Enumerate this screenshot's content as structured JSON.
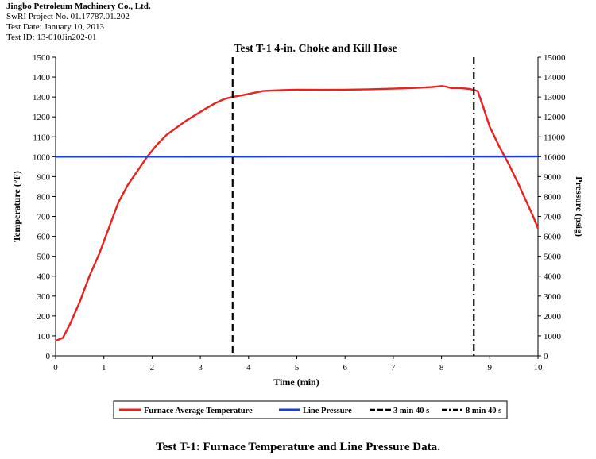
{
  "header": {
    "company": "Jingbo Petroleum Machinery Co., Ltd.",
    "project": "SwRI Project No. 01.17787.01.202",
    "test_date": "Test Date: January 10, 2013",
    "test_id": "Test ID: 13-010Jin202-01"
  },
  "caption": "Test T-1: Furnace Temperature and Line Pressure Data.",
  "chart_data": {
    "type": "line",
    "title": "Test T-1 4-in. Choke and Kill Hose",
    "xlabel": "Time (min)",
    "ylabel_left": "Temperature (°F)",
    "ylabel_right": "Pressure (psig)",
    "xlim": [
      0,
      10
    ],
    "ylim_left": [
      0,
      1500
    ],
    "ylim_right": [
      0,
      15000
    ],
    "x_ticks": [
      "0",
      "1",
      "2",
      "3",
      "4",
      "5",
      "6",
      "7",
      "8",
      "9",
      "10"
    ],
    "y_ticks_left": [
      "0",
      "100",
      "200",
      "300",
      "400",
      "500",
      "600",
      "700",
      "800",
      "900",
      "1000",
      "1100",
      "1200",
      "1300",
      "1400",
      "1500"
    ],
    "y_ticks_right": [
      "0",
      "1000",
      "2000",
      "3000",
      "4000",
      "5000",
      "6000",
      "7000",
      "8000",
      "9000",
      "10000",
      "11000",
      "12000",
      "13000",
      "14000",
      "15000"
    ],
    "grid": false,
    "legend_position": "bottom",
    "series": [
      {
        "name": "Furnace Average Temperature",
        "axis": "left",
        "color": "#e8221f",
        "x": [
          0,
          0.15,
          0.3,
          0.5,
          0.7,
          0.9,
          1.1,
          1.3,
          1.5,
          1.7,
          1.9,
          2.1,
          2.3,
          2.5,
          2.7,
          2.9,
          3.1,
          3.3,
          3.5,
          3.67,
          3.9,
          4.1,
          4.3,
          4.5,
          4.7,
          5.0,
          5.5,
          6.0,
          6.5,
          7.0,
          7.5,
          7.8,
          8.0,
          8.1,
          8.2,
          8.4,
          8.6,
          8.75,
          8.85,
          9.0,
          9.2,
          9.4,
          9.6,
          9.75,
          9.9,
          10.0
        ],
        "y": [
          75,
          90,
          160,
          270,
          400,
          510,
          640,
          770,
          860,
          930,
          1000,
          1060,
          1110,
          1145,
          1180,
          1210,
          1240,
          1268,
          1290,
          1300,
          1310,
          1320,
          1330,
          1333,
          1335,
          1337,
          1336,
          1337,
          1339,
          1342,
          1346,
          1350,
          1355,
          1352,
          1345,
          1345,
          1340,
          1330,
          1260,
          1150,
          1050,
          960,
          860,
          780,
          700,
          640
        ]
      },
      {
        "name": "Line Pressure",
        "axis": "right",
        "color": "#1f3dd6",
        "x": [
          0,
          10
        ],
        "y": [
          10000,
          10010
        ]
      },
      {
        "name": "3 min 40 s",
        "type": "vline",
        "style": "dashed",
        "color": "#000000",
        "x": 3.67
      },
      {
        "name": "8 min 40 s",
        "type": "vline",
        "style": "dash-dot",
        "color": "#000000",
        "x": 8.67
      }
    ]
  }
}
